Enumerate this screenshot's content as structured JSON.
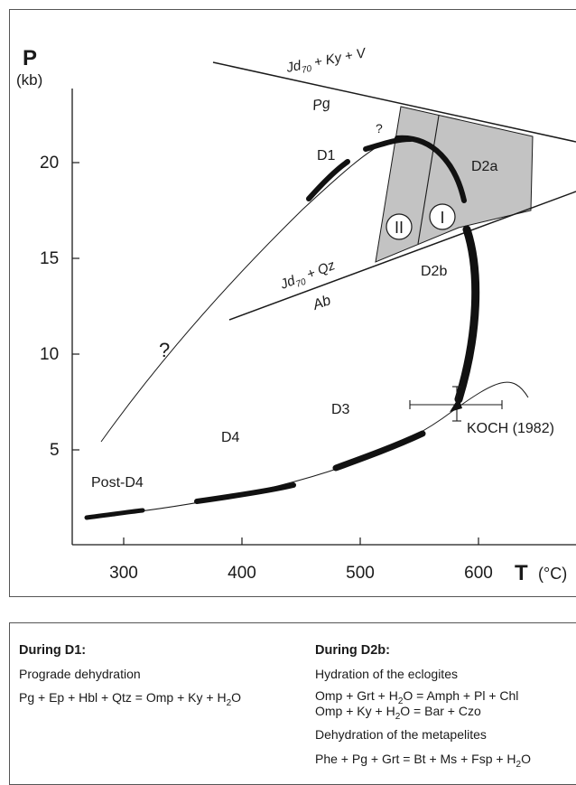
{
  "axes": {
    "y_title": "P",
    "y_unit": "(kb)",
    "x_title": "T",
    "x_unit": "(°C)",
    "y_ticks": [
      "5",
      "10",
      "15",
      "20"
    ],
    "x_ticks": [
      "300",
      "400",
      "500",
      "600"
    ]
  },
  "labels": {
    "d1": "D1",
    "d2a": "D2a",
    "d2b": "D2b",
    "d3": "D3",
    "d4": "D4",
    "post_d4": "Post-D4",
    "koch": "KOCH (1982)",
    "q1": "?",
    "q2": "?",
    "roman_1": "I",
    "roman_2": "II",
    "r1_main": "Jd",
    "r1_sub": "70",
    "r1_rest": " + Ky + V",
    "r1_below": "Pg",
    "r2_main": "Jd",
    "r2_sub": "70",
    "r2_rest": " + Qz",
    "r2_below": "Ab"
  },
  "colors": {
    "field_fill": "#bdbdbd",
    "line": "#1a1a1a"
  },
  "caption": {
    "left": {
      "heading": "During D1:",
      "line1": "Prograde dehydration",
      "eq1": "Pg + Ep + Hbl + Qtz = Omp + Ky + H",
      "eq1_sub": "2",
      "eq1_end": "O"
    },
    "right": {
      "heading": "During D2b:",
      "line1": "Hydration of the eclogites",
      "eq1a": "Omp + Grt + H",
      "eq1_sub": "2",
      "eq1b": "O = Amph + Pl + Chl",
      "eq2a": "Omp + Ky + H",
      "eq2_sub": "2",
      "eq2b": "O = Bar + Czo",
      "line2": "Dehydration of the metapelites",
      "eq3a": "Phe + Pg + Grt = Bt + Ms + Fsp + H",
      "eq3_sub": "2",
      "eq3b": "O"
    }
  }
}
